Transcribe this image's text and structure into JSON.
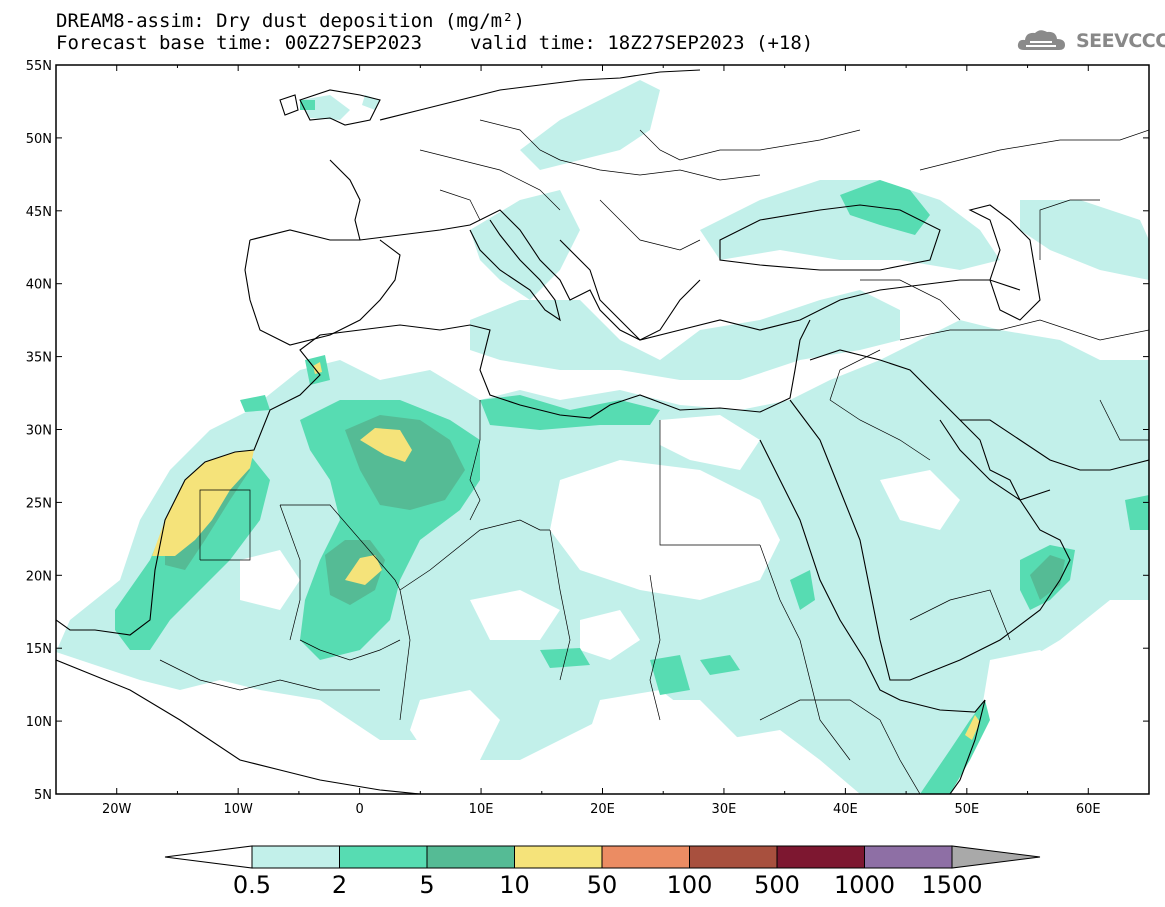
{
  "title_line1": "DREAM8-assim: Dry dust deposition (mg/m²)",
  "title_base": "Forecast base time: 00Z27SEP2023",
  "title_valid": "valid time: 18Z27SEP2023 (+18)",
  "logo": {
    "text": "SEEVCCC",
    "icon": "cloud-icon",
    "color": "#888888"
  },
  "map": {
    "lon_range": [
      -25,
      65
    ],
    "lat_range": [
      5,
      55
    ],
    "lat_labels": [
      "55N",
      "50N",
      "45N",
      "40N",
      "35N",
      "30N",
      "25N",
      "20N",
      "15N",
      "10N",
      "5N"
    ],
    "lon_labels": [
      "20W",
      "10W",
      "0",
      "10E",
      "20E",
      "30E",
      "40E",
      "50E",
      "60E"
    ]
  },
  "colorbar": {
    "labels": [
      "0.5",
      "2",
      "5",
      "10",
      "50",
      "100",
      "500",
      "1000",
      "1500"
    ],
    "colors": [
      "#c2f0ea",
      "#57dcb2",
      "#55bb95",
      "#f5e37a",
      "#eb8c63",
      "#a8503e",
      "#7d1730",
      "#8e6fa5"
    ],
    "under_color": "#ffffff",
    "over_color": "#a9a9a9"
  },
  "palette": {
    "light": "#c2f0ea",
    "mid": "#57dcb2",
    "dark": "#55bb95",
    "yellow": "#f5e37a"
  }
}
